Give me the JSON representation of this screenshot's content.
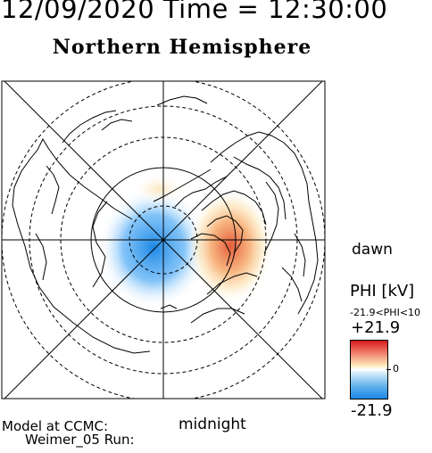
{
  "header": {
    "datetime": "12/09/2020 Time = 12:30:00"
  },
  "map": {
    "title": "Northern Hemisphere",
    "bottom_label": "midnight",
    "right_label": "dawn"
  },
  "colorbar": {
    "title": "PHI [kV]",
    "range_text": "-21.9<PHI<10",
    "max_label": "+21.9",
    "zero_label": "0",
    "min_label": "-21.9",
    "colors": {
      "positive": "#d7191c",
      "zero": "#ffffff",
      "negative": "#1e88e5"
    }
  },
  "footer": {
    "model_label": "Model at CCMC:",
    "run_label": "Weimer_05  Run:"
  }
}
